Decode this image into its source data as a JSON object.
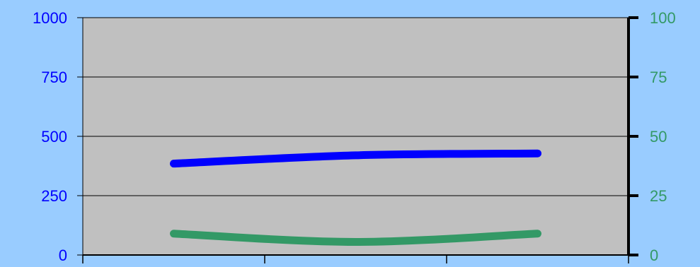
{
  "chart_data": {
    "type": "line",
    "categories": [
      "",
      "",
      ""
    ],
    "left_axis": {
      "ylim": [
        0,
        1000
      ],
      "ticks": [
        0,
        250,
        500,
        750,
        1000
      ],
      "tick_labels": [
        "0",
        "250",
        "500",
        "750",
        "1000"
      ],
      "color": "#0000ff"
    },
    "right_axis": {
      "ylim": [
        0,
        100
      ],
      "ticks": [
        0,
        25,
        50,
        75,
        100
      ],
      "tick_labels": [
        "0",
        "25",
        "50",
        "75",
        "100"
      ],
      "color": "#339966"
    },
    "series": [
      {
        "axis": "left",
        "color": "#0000ff",
        "values": [
          385,
          420,
          428
        ]
      },
      {
        "axis": "right",
        "color": "#339966",
        "values": [
          9,
          5.5,
          9
        ]
      }
    ],
    "grid": true,
    "background": "#99ccff",
    "plot_background": "#c0c0c0"
  }
}
